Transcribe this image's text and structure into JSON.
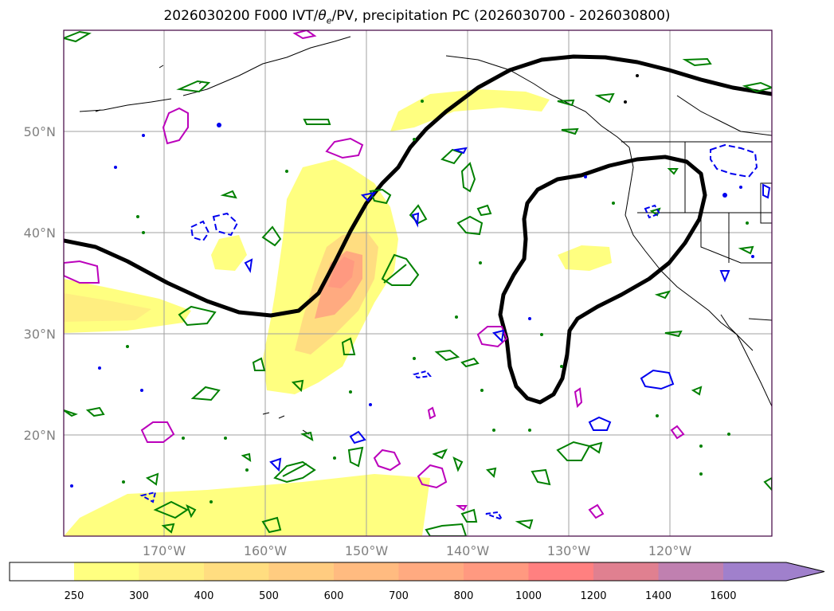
{
  "title_main": "2026030200 F000 IVT/",
  "title_theta": "θ",
  "title_sub": "e",
  "title_rest": "/PV, precipitation PC (2026030700 - 2026030800)",
  "map": {
    "latitude_labels": [
      "50°N",
      "40°N",
      "30°N",
      "20°N"
    ],
    "longitude_labels": [
      "170°W",
      "160°W",
      "150°W",
      "140°W",
      "130°W",
      "120°W"
    ],
    "colors": {
      "frame": "#400040",
      "grid": "#a0a0a0",
      "coast": "#000000",
      "jet_contour": "#000000",
      "pv_contour": "#008000",
      "theta_pos": "#bb00bb",
      "theta_neg": "#0000ee"
    }
  },
  "colorbar": {
    "levels": [
      "250",
      "300",
      "400",
      "500",
      "600",
      "700",
      "800",
      "1000",
      "1200",
      "1400",
      "1600"
    ],
    "colors": [
      "#ffff80",
      "#ffee80",
      "#ffdd80",
      "#ffcc80",
      "#ffbb80",
      "#ffaa80",
      "#ff9980",
      "#ff8080",
      "#e08090",
      "#c080b0",
      "#a080cc"
    ],
    "extend": "max"
  }
}
